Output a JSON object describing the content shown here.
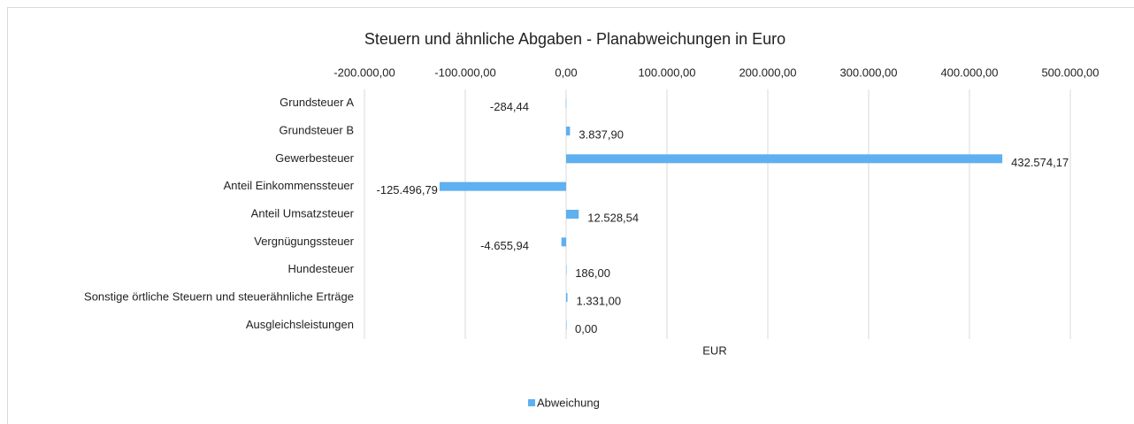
{
  "chart_data": {
    "type": "hbar",
    "title": "Steuern und ähnliche Abgaben - Planabweichungen in Euro",
    "x_label": "EUR",
    "categories": [
      "Grundsteuer A",
      "Grundsteuer B",
      "Gewerbesteuer",
      "Anteil Einkommenssteuer",
      "Anteil Umsatzsteuer",
      "Vergnügungssteuer",
      "Hundesteuer",
      "Sonstige örtliche Steuern und steuerähnliche Erträge",
      "Ausgleichsleistungen"
    ],
    "series": [
      {
        "name": "Abweichung",
        "color": "#5eb0f0",
        "values": [
          -284.44,
          3837.9,
          432574.17,
          -125496.79,
          12528.54,
          -4655.94,
          186.0,
          1331.0,
          0.0
        ],
        "value_labels": [
          "-284,44",
          "3.837,90",
          "432.574,17",
          "-125.496,79",
          "12.528,54",
          "-4.655,94",
          "186,00",
          "1.331,00",
          "0,00"
        ]
      }
    ],
    "xlim": [
      -200000,
      500000
    ],
    "xticks": [
      {
        "value": -200000,
        "label": "-200.000,00"
      },
      {
        "value": -100000,
        "label": "-100.000,00"
      },
      {
        "value": 0,
        "label": "0,00"
      },
      {
        "value": 100000,
        "label": "100.000,00"
      },
      {
        "value": 200000,
        "label": "200.000,00"
      },
      {
        "value": 300000,
        "label": "300.000,00"
      },
      {
        "value": 400000,
        "label": "400.000,00"
      },
      {
        "value": 500000,
        "label": "500.000,00"
      }
    ],
    "grid": true,
    "legend": "bottom"
  }
}
